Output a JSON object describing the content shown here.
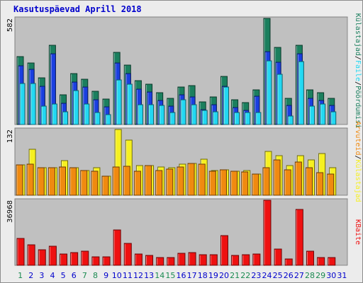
{
  "title": "Kasutuspäevad Aprill 2018",
  "colors": {
    "visits": "#1b7f5e",
    "pages": "#1a3fe0",
    "files": "#22d8f2",
    "hits": "#f6f020",
    "sites": "#f08a10",
    "kbytes": "#ee1111",
    "panel_bg": "#c0c0c0",
    "weekday_label": "#0000cc",
    "weekend_label": "#1a8a50"
  },
  "chart_data": [
    {
      "type": "bar",
      "panel": "top",
      "y_max_label": "582",
      "ylim": [
        0,
        582
      ],
      "categories": [
        "1",
        "2",
        "3",
        "4",
        "5",
        "6",
        "7",
        "8",
        "9",
        "10",
        "11",
        "12",
        "13",
        "14",
        "15",
        "16",
        "17",
        "18",
        "19",
        "20",
        "21",
        "22",
        "23",
        "24",
        "25",
        "26",
        "27",
        "28",
        "29",
        "30",
        "31"
      ],
      "legend": [
        {
          "label": "Külastajad",
          "color_key": "visits"
        },
        {
          "label": "/",
          "color_key": "separator"
        },
        {
          "label": "Faile",
          "color_key": "files"
        },
        {
          "label": "/",
          "color_key": "separator"
        },
        {
          "label": "Pöördumisi",
          "color_key": "visits"
        }
      ],
      "series": [
        {
          "key": "visits",
          "values": [
            374,
            336,
            258,
            433,
            162,
            278,
            250,
            181,
            138,
            397,
            327,
            240,
            220,
            176,
            145,
            206,
            213,
            125,
            150,
            265,
            137,
            121,
            191,
            582,
            424,
            144,
            433,
            189,
            175,
            145,
            0
          ]
        },
        {
          "key": "pages",
          "values": [
            322,
            304,
            208,
            389,
            118,
            234,
            206,
            137,
            96,
            338,
            280,
            194,
            178,
            130,
            102,
            162,
            152,
            81,
            108,
            208,
            92,
            79,
            155,
            400,
            340,
            105,
            389,
            145,
            133,
            104,
            0
          ]
        },
        {
          "key": "files",
          "values": [
            225,
            225,
            100,
            114,
            71,
            186,
            114,
            67,
            53,
            243,
            222,
            109,
            109,
            104,
            67,
            136,
            109,
            76,
            70,
            206,
            65,
            65,
            65,
            349,
            275,
            48,
            347,
            100,
            114,
            69,
            0
          ]
        }
      ]
    },
    {
      "type": "bar",
      "panel": "middle",
      "y_max_label": "132",
      "ylim": [
        0,
        132
      ],
      "categories": [
        "1",
        "2",
        "3",
        "4",
        "5",
        "6",
        "7",
        "8",
        "9",
        "10",
        "11",
        "12",
        "13",
        "14",
        "15",
        "16",
        "17",
        "18",
        "19",
        "20",
        "21",
        "22",
        "23",
        "24",
        "25",
        "26",
        "27",
        "28",
        "29",
        "30",
        "31"
      ],
      "legend": [
        {
          "label": "Arvuteid",
          "color_key": "sites"
        },
        {
          "label": "/",
          "color_key": "separator"
        },
        {
          "label": "Külastajad",
          "color_key": "hits"
        }
      ],
      "series": [
        {
          "key": "hits",
          "values": [
            61,
            92,
            56,
            55,
            70,
            55,
            50,
            55,
            38,
            132,
            110,
            59,
            60,
            57,
            56,
            62,
            64,
            73,
            50,
            51,
            48,
            49,
            43,
            88,
            80,
            60,
            79,
            71,
            84,
            56,
            0
          ]
        },
        {
          "key": "sites",
          "values": [
            61,
            63,
            56,
            55,
            57,
            55,
            50,
            48,
            38,
            57,
            58,
            48,
            59,
            50,
            53,
            57,
            64,
            62,
            48,
            51,
            48,
            47,
            43,
            56,
            71,
            51,
            66,
            56,
            46,
            42,
            0
          ]
        }
      ]
    },
    {
      "type": "bar",
      "panel": "bottom",
      "y_max_label": "36968",
      "ylim": [
        0,
        36968
      ],
      "categories": [
        "1",
        "2",
        "3",
        "4",
        "5",
        "6",
        "7",
        "8",
        "9",
        "10",
        "11",
        "12",
        "13",
        "14",
        "15",
        "16",
        "17",
        "18",
        "19",
        "20",
        "21",
        "22",
        "23",
        "24",
        "25",
        "26",
        "27",
        "28",
        "29",
        "30",
        "31"
      ],
      "legend": [
        {
          "label": "KBaite",
          "color_key": "kbytes"
        }
      ],
      "series": [
        {
          "key": "kbytes",
          "values": [
            15100,
            11500,
            8800,
            11000,
            6400,
            7200,
            8000,
            5000,
            5000,
            20000,
            12600,
            6400,
            5800,
            4400,
            4400,
            7000,
            7400,
            6000,
            6000,
            17000,
            5600,
            6000,
            6400,
            36968,
            9400,
            3600,
            31700,
            8000,
            4400,
            4400,
            0
          ]
        }
      ]
    }
  ]
}
